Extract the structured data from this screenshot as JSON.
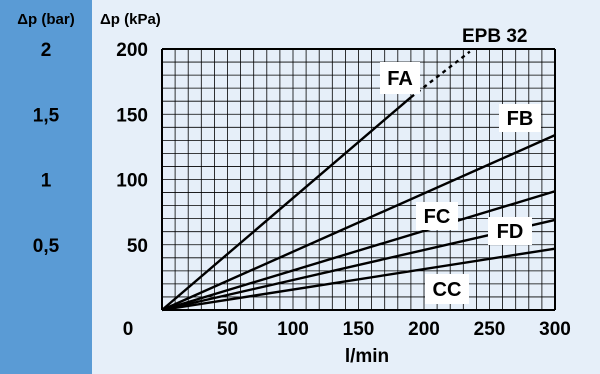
{
  "chart_data": {
    "type": "line",
    "title": "EPB 32",
    "y_left_label": "Δp (bar)",
    "y_left_ticks": [
      "2",
      "1,5",
      "1",
      "0,5"
    ],
    "y_left_values": [
      2,
      1.5,
      1,
      0.5
    ],
    "ylabel": "Δp (kPa)",
    "xlabel": "l/min",
    "origin_label": "0",
    "x_ticks": [
      "50",
      "100",
      "150",
      "200",
      "250",
      "300"
    ],
    "x_tick_values": [
      50,
      100,
      150,
      200,
      250,
      300
    ],
    "y_ticks": [
      "200",
      "150",
      "100",
      "50"
    ],
    "y_tick_values": [
      200,
      150,
      100,
      50
    ],
    "xlim": [
      0,
      300
    ],
    "ylim": [
      0,
      200
    ],
    "grid": true,
    "series": [
      {
        "name": "FA",
        "x": [
          0,
          190,
          235
        ],
        "y": [
          0,
          163,
          198
        ],
        "dashed_from_x": 190
      },
      {
        "name": "FB",
        "x": [
          0,
          300
        ],
        "y": [
          0,
          134
        ]
      },
      {
        "name": "FC",
        "x": [
          0,
          300
        ],
        "y": [
          0,
          91
        ]
      },
      {
        "name": "FD",
        "x": [
          0,
          300
        ],
        "y": [
          0,
          69
        ]
      },
      {
        "name": "CC",
        "x": [
          0,
          300
        ],
        "y": [
          0,
          47
        ]
      }
    ]
  },
  "colors": {
    "left_band": "#5a9bd5",
    "panel": "#e6eff9",
    "grid": "#000000",
    "series": "#000000"
  }
}
